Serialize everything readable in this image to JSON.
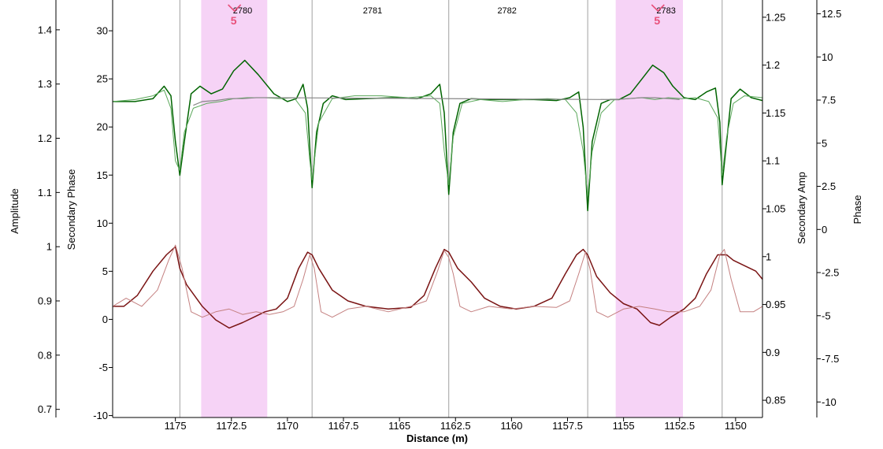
{
  "chart_data": {
    "type": "line",
    "xlabel": "Distance (m)",
    "x_reversed": true,
    "xlim": [
      1148.8,
      1177.8
    ],
    "x_ticks": [
      "1175",
      "1172.5",
      "1170",
      "1167.5",
      "1165",
      "1162.5",
      "1160",
      "1157.5",
      "1155",
      "1152.5",
      "1150"
    ],
    "axes": {
      "amplitude": {
        "label": "Amplitude",
        "side": "left-outer",
        "range": [
          0.685,
          1.455
        ],
        "ticks": [
          "0.7",
          "0.8",
          "0.9",
          "1",
          "1.1",
          "1.2",
          "1.3",
          "1.4"
        ]
      },
      "secondary_phase": {
        "label": "Secondary Phase",
        "side": "left-inner",
        "range": [
          -10.2,
          33.2
        ],
        "ticks": [
          "-10",
          "-5",
          "0",
          "5",
          "10",
          "15",
          "20",
          "25",
          "30"
        ]
      },
      "secondary_amp": {
        "label": "Secondary Amp",
        "side": "right-inner",
        "range": [
          0.832,
          1.268
        ],
        "ticks": [
          "0.85",
          "0.9",
          "0.95",
          "1",
          "1.05",
          "1.1",
          "1.15",
          "1.2",
          "1.25"
        ]
      },
      "phase": {
        "label": "Phase",
        "side": "right-outer",
        "range": [
          -10.9,
          13.3
        ],
        "ticks": [
          "-10",
          "-7.5",
          "-5",
          "-2.5",
          "0",
          "2.5",
          "5",
          "7.5",
          "10",
          "12.5"
        ]
      }
    },
    "segment_boundaries_x": [
      1174.8,
      1168.9,
      1162.8,
      1156.6,
      1150.6
    ],
    "segment_labels": [
      {
        "x": 1172.0,
        "text": "2780"
      },
      {
        "x": 1166.2,
        "text": "2781"
      },
      {
        "x": 1160.2,
        "text": "2782"
      },
      {
        "x": 1153.1,
        "text": "2783"
      }
    ],
    "highlights": [
      {
        "x_from": 1173.85,
        "x_to": 1170.9,
        "color": "#f6d3f6"
      },
      {
        "x_from": 1155.35,
        "x_to": 1152.35,
        "color": "#f6d3f6"
      }
    ],
    "anomaly_markers": [
      {
        "x": 1172.4,
        "text": "5"
      },
      {
        "x": 1153.5,
        "text": "5"
      }
    ],
    "series": [
      {
        "axis": "secondary_amp",
        "color": "#006400",
        "width": 1.5,
        "x": [
          1177.8,
          1176.8,
          1176.0,
          1175.5,
          1175.2,
          1175.0,
          1174.8,
          1174.6,
          1174.3,
          1173.9,
          1173.4,
          1172.9,
          1172.4,
          1171.9,
          1171.3,
          1170.6,
          1170.0,
          1169.6,
          1169.3,
          1169.1,
          1168.9,
          1168.7,
          1168.4,
          1168.0,
          1167.4,
          1166.5,
          1165.3,
          1164.2,
          1163.6,
          1163.2,
          1163.0,
          1162.8,
          1162.6,
          1162.3,
          1161.8,
          1161.0,
          1160.0,
          1159.0,
          1158.0,
          1157.4,
          1157.0,
          1156.8,
          1156.6,
          1156.4,
          1156.0,
          1155.6,
          1155.2,
          1154.7,
          1154.2,
          1153.7,
          1153.2,
          1152.8,
          1152.3,
          1151.8,
          1151.3,
          1150.9,
          1150.7,
          1150.6,
          1150.4,
          1150.2,
          1149.8,
          1149.3,
          1148.8
        ],
        "y": [
          1.162,
          1.162,
          1.165,
          1.178,
          1.168,
          1.12,
          1.085,
          1.12,
          1.17,
          1.178,
          1.17,
          1.175,
          1.194,
          1.205,
          1.19,
          1.17,
          1.162,
          1.165,
          1.18,
          1.155,
          1.072,
          1.13,
          1.16,
          1.168,
          1.164,
          1.165,
          1.166,
          1.165,
          1.17,
          1.18,
          1.15,
          1.065,
          1.13,
          1.16,
          1.165,
          1.164,
          1.164,
          1.164,
          1.163,
          1.166,
          1.172,
          1.135,
          1.048,
          1.12,
          1.16,
          1.164,
          1.164,
          1.17,
          1.185,
          1.2,
          1.192,
          1.178,
          1.166,
          1.164,
          1.172,
          1.176,
          1.14,
          1.075,
          1.12,
          1.165,
          1.175,
          1.166,
          1.163
        ]
      },
      {
        "axis": "secondary_amp",
        "color": "#5ba85b",
        "width": 1.0,
        "x": [
          1177.8,
          1176.8,
          1176.0,
          1175.5,
          1175.2,
          1175.0,
          1174.8,
          1174.6,
          1174.2,
          1173.6,
          1173.0,
          1172.4,
          1171.8,
          1171.0,
          1170.3,
          1169.7,
          1169.2,
          1169.0,
          1168.9,
          1168.6,
          1168.0,
          1167.0,
          1165.8,
          1164.6,
          1163.6,
          1163.2,
          1163.0,
          1162.8,
          1162.6,
          1162.2,
          1161.4,
          1160.4,
          1159.4,
          1158.4,
          1157.6,
          1157.1,
          1156.8,
          1156.6,
          1156.4,
          1156.0,
          1155.4,
          1154.8,
          1154.2,
          1153.6,
          1153.0,
          1152.4,
          1151.8,
          1151.2,
          1150.8,
          1150.6,
          1150.4,
          1150.1,
          1149.6,
          1148.8
        ],
        "y": [
          1.162,
          1.164,
          1.168,
          1.174,
          1.155,
          1.1,
          1.09,
          1.13,
          1.155,
          1.16,
          1.162,
          1.165,
          1.166,
          1.166,
          1.165,
          1.166,
          1.15,
          1.1,
          1.08,
          1.14,
          1.165,
          1.168,
          1.168,
          1.166,
          1.168,
          1.16,
          1.11,
          1.075,
          1.125,
          1.16,
          1.164,
          1.162,
          1.164,
          1.165,
          1.164,
          1.15,
          1.11,
          1.063,
          1.11,
          1.15,
          1.164,
          1.165,
          1.166,
          1.164,
          1.166,
          1.165,
          1.166,
          1.162,
          1.145,
          1.085,
          1.125,
          1.16,
          1.168,
          1.166
        ]
      },
      {
        "axis": "amplitude",
        "color": "#7a1414",
        "width": 1.5,
        "x": [
          1177.8,
          1177.3,
          1176.7,
          1176.0,
          1175.4,
          1175.0,
          1174.8,
          1174.5,
          1173.8,
          1173.2,
          1172.6,
          1172.0,
          1171.5,
          1171.0,
          1170.5,
          1170.0,
          1169.5,
          1169.1,
          1168.9,
          1168.6,
          1168.0,
          1167.3,
          1166.5,
          1165.5,
          1164.5,
          1163.9,
          1163.4,
          1163.0,
          1162.8,
          1162.4,
          1161.8,
          1161.2,
          1160.5,
          1159.8,
          1159.0,
          1158.2,
          1157.6,
          1157.1,
          1156.8,
          1156.6,
          1156.2,
          1155.6,
          1155.0,
          1154.4,
          1153.8,
          1153.4,
          1152.9,
          1152.3,
          1151.8,
          1151.3,
          1150.8,
          1150.4,
          1150.1,
          1149.6,
          1149.1,
          1148.8
        ],
        "y": [
          0.89,
          0.89,
          0.91,
          0.955,
          0.985,
          1.0,
          0.96,
          0.93,
          0.89,
          0.865,
          0.85,
          0.86,
          0.87,
          0.88,
          0.885,
          0.905,
          0.96,
          0.99,
          0.985,
          0.96,
          0.92,
          0.9,
          0.89,
          0.885,
          0.888,
          0.91,
          0.96,
          0.995,
          0.99,
          0.96,
          0.935,
          0.905,
          0.89,
          0.885,
          0.89,
          0.905,
          0.95,
          0.985,
          0.995,
          0.985,
          0.945,
          0.915,
          0.895,
          0.885,
          0.86,
          0.855,
          0.87,
          0.885,
          0.905,
          0.95,
          0.985,
          0.985,
          0.975,
          0.965,
          0.955,
          0.94
        ]
      },
      {
        "axis": "amplitude",
        "color": "#c48080",
        "width": 1.0,
        "x": [
          1177.8,
          1177.2,
          1176.5,
          1175.8,
          1175.3,
          1175.0,
          1174.7,
          1174.3,
          1173.8,
          1173.2,
          1172.6,
          1172.0,
          1171.4,
          1170.8,
          1170.2,
          1169.7,
          1169.3,
          1169.0,
          1168.8,
          1168.5,
          1168.0,
          1167.3,
          1166.5,
          1165.5,
          1164.5,
          1163.8,
          1163.3,
          1163.0,
          1162.8,
          1162.6,
          1162.3,
          1161.8,
          1161.0,
          1160.0,
          1159.0,
          1158.0,
          1157.4,
          1157.0,
          1156.7,
          1156.5,
          1156.2,
          1155.7,
          1155.0,
          1154.3,
          1153.6,
          1153.0,
          1152.3,
          1151.6,
          1151.1,
          1150.7,
          1150.5,
          1150.2,
          1149.8,
          1149.2,
          1148.8
        ],
        "y": [
          0.89,
          0.905,
          0.89,
          0.92,
          0.975,
          1.003,
          0.96,
          0.88,
          0.87,
          0.88,
          0.885,
          0.875,
          0.88,
          0.875,
          0.88,
          0.89,
          0.94,
          0.985,
          0.96,
          0.88,
          0.87,
          0.885,
          0.89,
          0.88,
          0.89,
          0.9,
          0.955,
          0.993,
          0.98,
          0.95,
          0.89,
          0.88,
          0.89,
          0.885,
          0.89,
          0.888,
          0.9,
          0.95,
          0.99,
          0.96,
          0.88,
          0.87,
          0.885,
          0.89,
          0.885,
          0.88,
          0.88,
          0.89,
          0.92,
          0.985,
          0.995,
          0.94,
          0.88,
          0.88,
          0.89
        ]
      },
      {
        "axis": "secondary_amp",
        "color": "#888888",
        "width": 1.2,
        "x": [
          1174.2,
          1173.8,
          1173.2,
          1172.6,
          1172.0,
          1171.4,
          1170.8,
          1155.3,
          1154.8,
          1154.2,
          1153.6,
          1153.0,
          1152.5
        ],
        "y": [
          1.158,
          1.162,
          1.163,
          1.165,
          1.165,
          1.166,
          1.166,
          1.164,
          1.165,
          1.166,
          1.166,
          1.165,
          1.164
        ]
      }
    ]
  }
}
